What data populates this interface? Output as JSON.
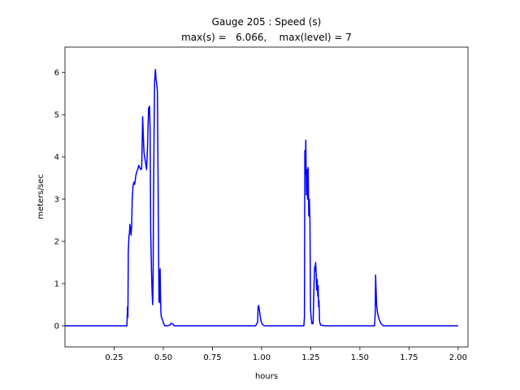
{
  "chart_data": {
    "type": "line",
    "title_line1": "Gauge 205 : Speed (s)",
    "title_line2": "max(s) =   6.066,    max(level) = 7",
    "xlabel": "hours",
    "ylabel": "meters/sec",
    "xlim": [
      0.0,
      2.05
    ],
    "ylim": [
      -0.5,
      6.6
    ],
    "xticks": [
      0.25,
      0.5,
      0.75,
      1.0,
      1.25,
      1.5,
      1.75,
      2.0
    ],
    "xtick_labels": [
      "0.25",
      "0.50",
      "0.75",
      "1.00",
      "1.25",
      "1.50",
      "1.75",
      "2.00"
    ],
    "yticks": [
      0,
      1,
      2,
      3,
      4,
      5,
      6
    ],
    "ytick_labels": [
      "0",
      "1",
      "2",
      "3",
      "4",
      "5",
      "6"
    ],
    "grid": false,
    "series": [
      {
        "color": "#0000ff",
        "x": [
          0.0,
          0.315,
          0.318,
          0.32,
          0.322,
          0.325,
          0.328,
          0.33,
          0.333,
          0.336,
          0.339,
          0.342,
          0.344,
          0.346,
          0.35,
          0.355,
          0.36,
          0.365,
          0.37,
          0.375,
          0.38,
          0.385,
          0.39,
          0.395,
          0.4,
          0.402,
          0.405,
          0.41,
          0.415,
          0.42,
          0.425,
          0.43,
          0.433,
          0.436,
          0.44,
          0.443,
          0.446,
          0.448,
          0.45,
          0.453,
          0.456,
          0.46,
          0.463,
          0.466,
          0.47,
          0.475,
          0.478,
          0.48,
          0.482,
          0.484,
          0.486,
          0.488,
          0.49,
          0.492,
          0.495,
          0.498,
          0.5,
          0.502,
          0.505,
          0.508,
          0.52,
          0.535,
          0.54,
          0.55,
          0.555,
          0.56,
          0.575,
          0.97,
          0.975,
          0.98,
          0.982,
          0.985,
          0.988,
          0.992,
          0.998,
          1.005,
          1.015,
          1.025,
          1.215,
          1.218,
          1.22,
          1.222,
          1.225,
          1.228,
          1.231,
          1.234,
          1.237,
          1.24,
          1.243,
          1.246,
          1.249,
          1.252,
          1.256,
          1.262,
          1.267,
          1.27,
          1.272,
          1.275,
          1.278,
          1.28,
          1.283,
          1.286,
          1.288,
          1.29,
          1.292,
          1.295,
          1.3,
          1.32,
          1.33,
          1.575,
          1.578,
          1.58,
          1.582,
          1.585,
          1.59,
          1.598,
          1.608,
          1.62,
          2.0
        ],
        "y": [
          0.0,
          0.0,
          0.45,
          0.2,
          1.75,
          2.1,
          2.2,
          2.4,
          2.3,
          2.15,
          2.35,
          3.0,
          3.15,
          3.3,
          3.4,
          3.35,
          3.55,
          3.65,
          3.7,
          3.8,
          3.75,
          3.7,
          3.72,
          4.95,
          4.3,
          4.1,
          4.0,
          3.85,
          3.7,
          4.25,
          5.15,
          5.2,
          4.6,
          2.2,
          1.3,
          0.8,
          0.5,
          1.0,
          2.8,
          4.5,
          5.8,
          6.07,
          5.85,
          5.75,
          5.55,
          2.5,
          0.6,
          0.55,
          1.1,
          1.35,
          0.7,
          0.3,
          0.22,
          0.18,
          0.15,
          0.12,
          0.08,
          0.05,
          0.03,
          0.0,
          0.0,
          0.02,
          0.06,
          0.04,
          0.0,
          0.0,
          0.0,
          0.0,
          0.05,
          0.08,
          0.45,
          0.48,
          0.4,
          0.25,
          0.1,
          0.03,
          0.0,
          0.0,
          0.0,
          0.2,
          4.15,
          3.6,
          4.4,
          3.1,
          3.7,
          3.0,
          3.75,
          2.6,
          3.0,
          2.5,
          0.4,
          0.2,
          0.05,
          0.05,
          1.0,
          1.4,
          1.3,
          1.5,
          1.2,
          0.85,
          1.1,
          0.7,
          0.95,
          0.45,
          0.6,
          0.1,
          0.02,
          0.0,
          0.0,
          0.0,
          0.3,
          1.2,
          0.9,
          0.5,
          0.3,
          0.15,
          0.05,
          0.0,
          0.0
        ]
      }
    ]
  }
}
